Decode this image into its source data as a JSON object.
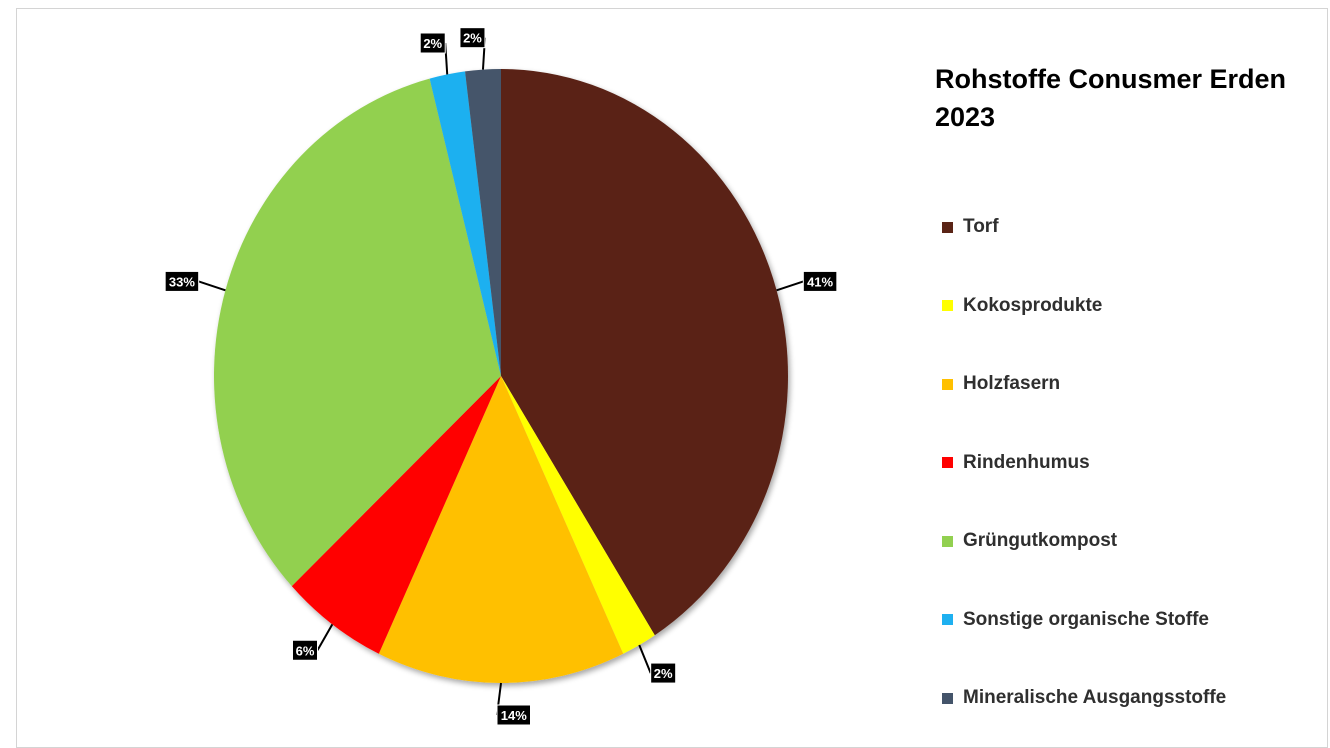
{
  "chart_data": {
    "type": "pie",
    "title": "Rohstoffe Conusmer Erden 2023",
    "legend_position": "right",
    "slices": [
      {
        "label": "Torf",
        "value": 41,
        "data_label": "41%",
        "color": "#5a2416"
      },
      {
        "label": "Kokosprodukte",
        "value": 2,
        "data_label": "2%",
        "color": "#ffff00"
      },
      {
        "label": "Holzfasern",
        "value": 14,
        "data_label": "14%",
        "color": "#ffc000"
      },
      {
        "label": "Rindenhumus",
        "value": 6,
        "data_label": "6%",
        "color": "#ff0000"
      },
      {
        "label": "Grüngutkompost",
        "value": 33,
        "data_label": "33%",
        "color": "#92d050"
      },
      {
        "label": "Sonstige organische Stoffe",
        "value": 2,
        "data_label": "2%",
        "color": "#1eb0f0"
      },
      {
        "label": "Mineralische Ausgangsstoffe",
        "value": 2,
        "data_label": "2%",
        "color": "#44546a"
      }
    ]
  }
}
